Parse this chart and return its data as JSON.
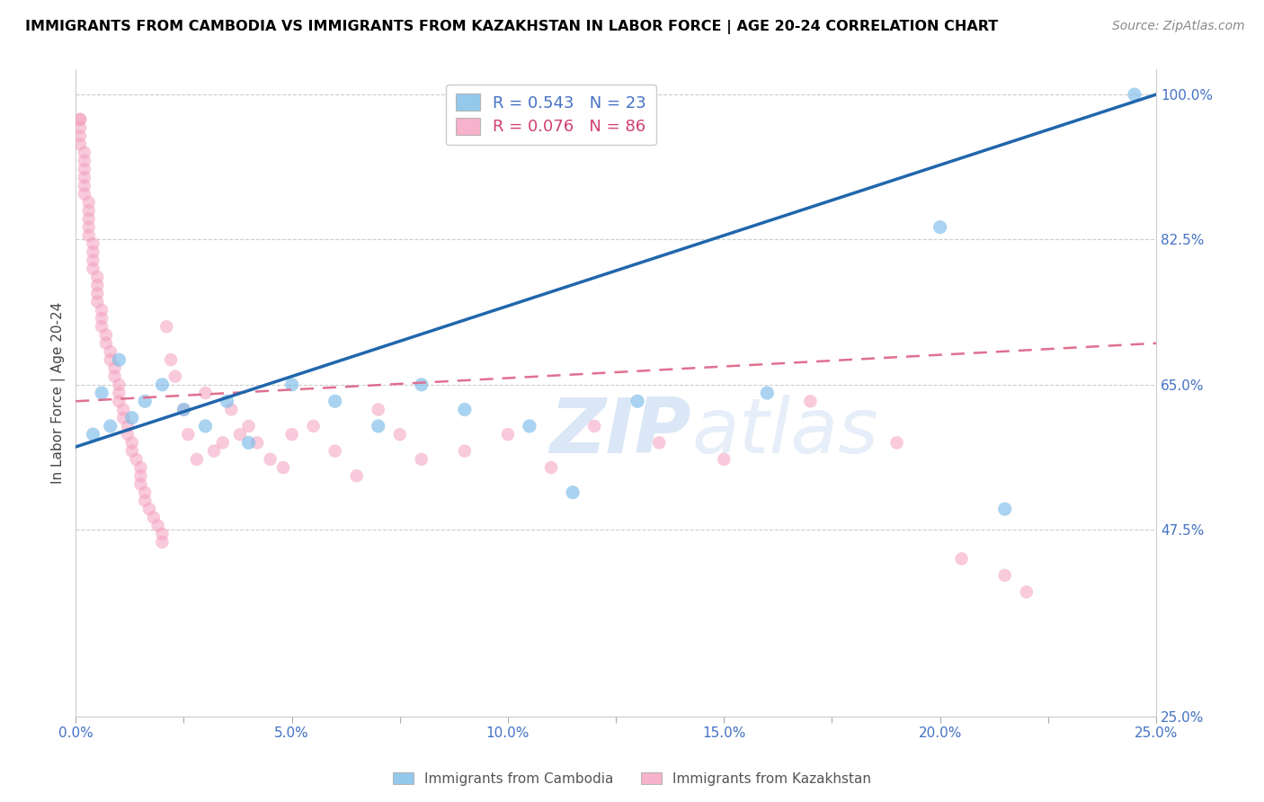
{
  "title": "IMMIGRANTS FROM CAMBODIA VS IMMIGRANTS FROM KAZAKHSTAN IN LABOR FORCE | AGE 20-24 CORRELATION CHART",
  "source": "Source: ZipAtlas.com",
  "ylabel_label": "In Labor Force | Age 20-24",
  "xlim": [
    0.0,
    0.25
  ],
  "ylim": [
    0.25,
    1.03
  ],
  "R_cambodia": 0.543,
  "N_cambodia": 23,
  "R_kazakhstan": 0.076,
  "N_kazakhstan": 86,
  "color_cambodia": "#7bbce8",
  "color_kazakhstan": "#f4a0be",
  "legend_cambodia": "Immigrants from Cambodia",
  "legend_kazakhstan": "Immigrants from Kazakhstan",
  "watermark_zip": "ZIP",
  "watermark_atlas": "atlas",
  "ytick_vals": [
    0.25,
    0.475,
    0.65,
    0.825,
    1.0
  ],
  "ytick_labels": [
    "25.0%",
    "47.5%",
    "65.0%",
    "82.5%",
    "100.0%"
  ],
  "xtick_vals": [
    0.0,
    0.025,
    0.05,
    0.075,
    0.1,
    0.125,
    0.15,
    0.175,
    0.2,
    0.225,
    0.25
  ],
  "xtick_labels": [
    "0.0%",
    "",
    "5.0%",
    "",
    "10.0%",
    "",
    "15.0%",
    "",
    "20.0%",
    "",
    "25.0%"
  ],
  "cambodia_x": [
    0.004,
    0.006,
    0.008,
    0.01,
    0.013,
    0.016,
    0.02,
    0.025,
    0.03,
    0.035,
    0.04,
    0.05,
    0.06,
    0.07,
    0.08,
    0.09,
    0.105,
    0.115,
    0.13,
    0.16,
    0.2,
    0.215,
    0.245
  ],
  "cambodia_y": [
    0.59,
    0.64,
    0.6,
    0.68,
    0.61,
    0.63,
    0.65,
    0.62,
    0.6,
    0.63,
    0.58,
    0.65,
    0.63,
    0.6,
    0.65,
    0.62,
    0.6,
    0.52,
    0.63,
    0.64,
    0.84,
    0.5,
    1.0
  ],
  "kaz_x": [
    0.001,
    0.001,
    0.001,
    0.001,
    0.001,
    0.002,
    0.002,
    0.002,
    0.002,
    0.002,
    0.002,
    0.003,
    0.003,
    0.003,
    0.003,
    0.003,
    0.004,
    0.004,
    0.004,
    0.004,
    0.005,
    0.005,
    0.005,
    0.005,
    0.006,
    0.006,
    0.006,
    0.007,
    0.007,
    0.008,
    0.008,
    0.009,
    0.009,
    0.01,
    0.01,
    0.01,
    0.011,
    0.011,
    0.012,
    0.012,
    0.013,
    0.013,
    0.014,
    0.015,
    0.015,
    0.015,
    0.016,
    0.016,
    0.017,
    0.018,
    0.019,
    0.02,
    0.02,
    0.021,
    0.022,
    0.023,
    0.025,
    0.026,
    0.028,
    0.03,
    0.032,
    0.034,
    0.036,
    0.038,
    0.04,
    0.042,
    0.045,
    0.048,
    0.05,
    0.055,
    0.06,
    0.065,
    0.07,
    0.075,
    0.08,
    0.09,
    0.1,
    0.11,
    0.12,
    0.135,
    0.15,
    0.17,
    0.19,
    0.205,
    0.215,
    0.22
  ],
  "kaz_y": [
    0.97,
    0.97,
    0.96,
    0.95,
    0.94,
    0.93,
    0.92,
    0.91,
    0.9,
    0.89,
    0.88,
    0.87,
    0.86,
    0.85,
    0.84,
    0.83,
    0.82,
    0.81,
    0.8,
    0.79,
    0.78,
    0.77,
    0.76,
    0.75,
    0.74,
    0.73,
    0.72,
    0.71,
    0.7,
    0.69,
    0.68,
    0.67,
    0.66,
    0.65,
    0.64,
    0.63,
    0.62,
    0.61,
    0.6,
    0.59,
    0.58,
    0.57,
    0.56,
    0.55,
    0.54,
    0.53,
    0.52,
    0.51,
    0.5,
    0.49,
    0.48,
    0.47,
    0.46,
    0.72,
    0.68,
    0.66,
    0.62,
    0.59,
    0.56,
    0.64,
    0.57,
    0.58,
    0.62,
    0.59,
    0.6,
    0.58,
    0.56,
    0.55,
    0.59,
    0.6,
    0.57,
    0.54,
    0.62,
    0.59,
    0.56,
    0.57,
    0.59,
    0.55,
    0.6,
    0.58,
    0.56,
    0.63,
    0.58,
    0.44,
    0.42,
    0.4
  ],
  "cam_line_x": [
    0.0,
    0.25
  ],
  "cam_line_y": [
    0.575,
    1.0
  ],
  "kaz_line_x": [
    0.0,
    0.25
  ],
  "kaz_line_y": [
    0.63,
    0.7
  ]
}
